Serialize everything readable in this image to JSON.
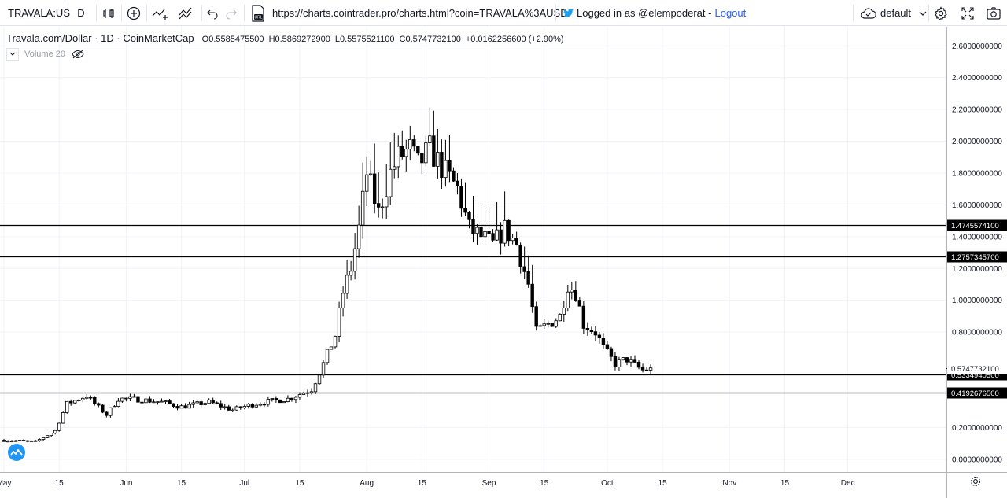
{
  "toolbar": {
    "symbol": "TRAVALA:US",
    "interval": "D",
    "url": "https://charts.cointrader.pro/charts.html?coin=TRAVALA%3AUSD",
    "logged_in_text": "Logged in as @elempoderat -",
    "logout_label": "Logout",
    "layout_name": "default",
    "icons": [
      "bar-style-icon",
      "add-indicator-icon",
      "compare-icon",
      "indicators-icon",
      "undo-icon",
      "redo-icon",
      "url-icon",
      "twitter-icon",
      "cloud-icon",
      "gear-icon",
      "fullscreen-icon",
      "snapshot-icon"
    ]
  },
  "legend": {
    "title": "Travala.com/Dollar · 1D · CoinMarketCap",
    "open": "O0.5585475500",
    "high": "H0.5869272900",
    "low": "L0.5575521100",
    "close": "C0.5747732100",
    "change": "+0.0162256600 (+2.90%)",
    "volume_label": "Volume 20"
  },
  "chart_data": {
    "type": "candlestick",
    "y_ticks": [
      "2.6000000000",
      "2.4000000000",
      "2.2000000000",
      "2.0000000000",
      "1.8000000000",
      "1.6000000000",
      "1.4000000000",
      "1.2000000000",
      "1.0000000000",
      "0.8000000000",
      "0.2000000000",
      "0.0000000000"
    ],
    "y_tick_values": [
      2.6,
      2.4,
      2.2,
      2.0,
      1.8,
      1.6,
      1.4,
      1.2,
      1.0,
      0.8,
      0.2,
      0.0
    ],
    "ylim": [
      -0.08,
      2.72
    ],
    "x_labels": [
      "May",
      "15",
      "Jun",
      "15",
      "Jul",
      "15",
      "Aug",
      "15",
      "Sep",
      "15",
      "Oct",
      "15",
      "Nov",
      "15",
      "Dec"
    ],
    "x_label_days": [
      0,
      14,
      31,
      45,
      61,
      75,
      92,
      106,
      123,
      137,
      153,
      167,
      184,
      198,
      214
    ],
    "day_range": [
      -1,
      239
    ],
    "horizontal_levels": [
      {
        "label": "1.4745574100",
        "value": 1.47455741
      },
      {
        "label": "1.2757345700",
        "value": 1.27573457
      },
      {
        "label": "0.5334940500",
        "value": 0.53349405
      },
      {
        "label": "0.4192676500",
        "value": 0.41926765
      }
    ],
    "last_price": {
      "label": "0.5747732100",
      "value": 0.57477321
    },
    "ohlc_keypoints": [
      [
        0,
        0.12
      ],
      [
        8,
        0.11
      ],
      [
        13,
        0.18
      ],
      [
        16,
        0.35
      ],
      [
        19,
        0.38
      ],
      [
        21,
        0.4
      ],
      [
        23,
        0.35
      ],
      [
        26,
        0.28
      ],
      [
        29,
        0.38
      ],
      [
        33,
        0.38
      ],
      [
        40,
        0.36
      ],
      [
        45,
        0.33
      ],
      [
        52,
        0.36
      ],
      [
        58,
        0.31
      ],
      [
        62,
        0.34
      ],
      [
        66,
        0.36
      ],
      [
        72,
        0.38
      ],
      [
        78,
        0.44
      ],
      [
        81,
        0.6
      ],
      [
        84,
        0.78
      ],
      [
        86,
        1.05
      ],
      [
        88,
        1.2
      ],
      [
        90,
        1.45
      ],
      [
        92,
        1.8
      ],
      [
        95,
        1.55
      ],
      [
        98,
        1.8
      ],
      [
        100,
        1.9
      ],
      [
        103,
        1.95
      ],
      [
        105,
        1.85
      ],
      [
        108,
        1.95
      ],
      [
        112,
        1.8
      ],
      [
        115,
        1.7
      ],
      [
        118,
        1.45
      ],
      [
        121,
        1.4
      ],
      [
        124,
        1.35
      ],
      [
        127,
        1.45
      ],
      [
        130,
        1.35
      ],
      [
        133,
        1.1
      ],
      [
        135,
        0.8
      ],
      [
        138,
        0.85
      ],
      [
        141,
        0.9
      ],
      [
        143,
        1.1
      ],
      [
        145,
        1.05
      ],
      [
        147,
        0.85
      ],
      [
        150,
        0.8
      ],
      [
        152,
        0.7
      ],
      [
        155,
        0.6
      ],
      [
        158,
        0.63
      ],
      [
        160,
        0.59
      ],
      [
        162,
        0.56
      ],
      [
        164,
        0.5748
      ]
    ]
  }
}
